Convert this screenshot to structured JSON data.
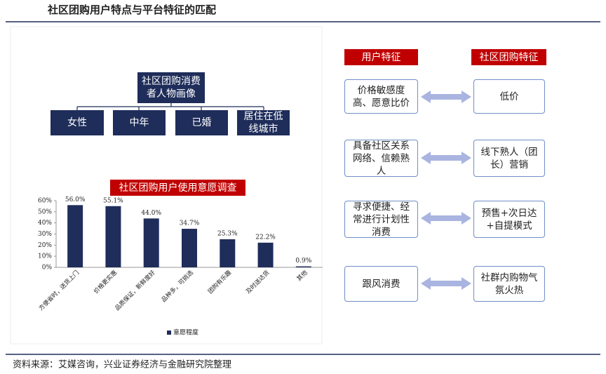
{
  "header": {
    "title": "社区团购用户特点与平台特征的匹配"
  },
  "tree": {
    "root": "社区团购消费者人物画像",
    "children": [
      "女性",
      "中年",
      "已婚",
      "居住在低线城市"
    ]
  },
  "comparison": {
    "headers": [
      "用户特征",
      "社区团购特征"
    ],
    "rows": [
      [
        "价格敏感度高、愿意比价",
        "低价"
      ],
      [
        "具备社区关系网络、信赖熟人",
        "线下熟人（团长）营销"
      ],
      [
        "寻求便捷、经常进行计划性消费",
        "预售+次日达+自提模式"
      ],
      [
        "跟风消费",
        "社群内购物气氛火热"
      ]
    ]
  },
  "chart_data": {
    "type": "bar",
    "title": "社区团购用户使用意愿调查",
    "categories": [
      "方便省时，送货上门",
      "价格更实惠",
      "品质保证，新鲜度好",
      "品种多，可挑选",
      "团购有乐趣",
      "及时送达货",
      "其他"
    ],
    "series": [
      {
        "name": "意愿程度",
        "color": "#1f2d5a",
        "values": [
          56.0,
          55.1,
          44.0,
          34.7,
          25.3,
          22.2,
          0.9
        ],
        "value_labels": [
          "56.0%",
          "55.1%",
          "44.0%",
          "34.7%",
          "25.3%",
          "22.2%",
          "0.9%"
        ]
      }
    ],
    "ylim": [
      0,
      60
    ],
    "yticks": [
      {
        "value": 0,
        "label": "0%"
      },
      {
        "value": 10,
        "label": "10%"
      },
      {
        "value": 20,
        "label": "20%"
      },
      {
        "value": 30,
        "label": "30%"
      },
      {
        "value": 40,
        "label": "40%"
      },
      {
        "value": 50,
        "label": "50%"
      },
      {
        "value": 60,
        "label": "60%"
      }
    ],
    "legend": "bottom"
  },
  "source": "资料来源：艾媒咨询，兴业证券经济与金融研究院整理"
}
